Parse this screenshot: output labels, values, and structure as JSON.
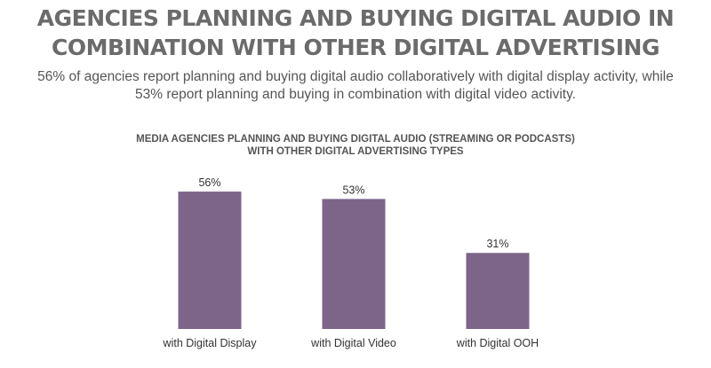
{
  "header": {
    "title_line1": "AGENCIES PLANNING AND BUYING DIGITAL AUDIO IN",
    "title_line2": "COMBINATION WITH OTHER DIGITAL ADVERTISING",
    "subtitle_line1": "56% of agencies report planning and buying digital audio collaboratively with digital display activity, while",
    "subtitle_line2": "53% report planning and buying in combination with digital video activity."
  },
  "chart_data": {
    "type": "bar",
    "title_line1": "MEDIA AGENCIES PLANNING AND BUYING DIGITAL AUDIO (STREAMING OR PODCASTS)",
    "title_line2": "WITH OTHER DIGITAL ADVERTISING TYPES",
    "categories": [
      "with Digital Display",
      "with Digital Video",
      "with Digital OOH"
    ],
    "values": [
      56,
      53,
      31
    ],
    "data_labels": [
      "56%",
      "53%",
      "31%"
    ],
    "ylim": [
      0,
      60
    ],
    "grid": false,
    "legend": "none",
    "bar_color": "#7d6589",
    "xlabel": "",
    "ylabel": ""
  }
}
